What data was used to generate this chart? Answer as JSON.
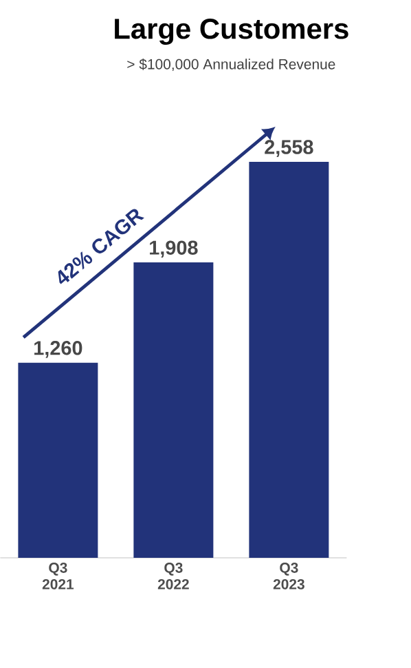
{
  "chart_data": {
    "type": "bar",
    "title": "Large Customers",
    "subtitle": "> $100,000 Annualized Revenue",
    "categories": [
      "Q3 2021",
      "Q3 2022",
      "Q3 2023"
    ],
    "values": [
      1260,
      1908,
      2558
    ],
    "value_labels": [
      "1,260",
      "1,908",
      "2,558"
    ],
    "color": "#22337a",
    "annotations": [
      "42% CAGR"
    ]
  }
}
